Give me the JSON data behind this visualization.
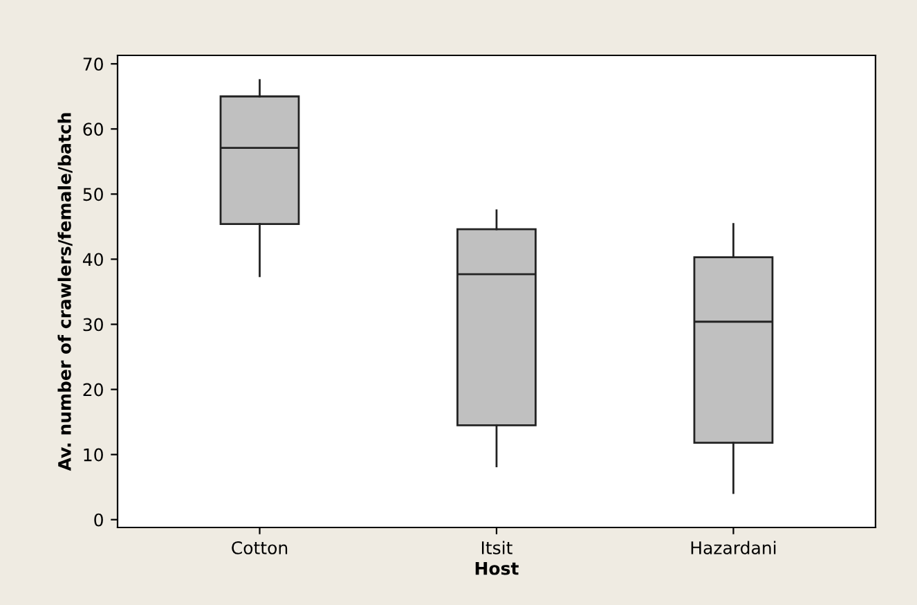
{
  "chart_data": {
    "type": "box",
    "xlabel": "Host",
    "ylabel": "Av. number of crawlers/female/batch",
    "categories": [
      "Cotton",
      "Itsit",
      "Hazardani"
    ],
    "boxes": [
      {
        "low": 37.4,
        "q1": 45.4,
        "median": 57.1,
        "q3": 65.0,
        "high": 67.5
      },
      {
        "low": 8.2,
        "q1": 14.5,
        "median": 37.7,
        "q3": 44.6,
        "high": 47.5
      },
      {
        "low": 4.1,
        "q1": 11.8,
        "median": 30.4,
        "q3": 40.3,
        "high": 45.4
      }
    ],
    "color": "#c0c0c0",
    "ylim": [
      -1.2,
      71.3
    ],
    "yticks": [
      0,
      10,
      20,
      30,
      40,
      50,
      60,
      70
    ],
    "grid": false,
    "legend": false
  }
}
